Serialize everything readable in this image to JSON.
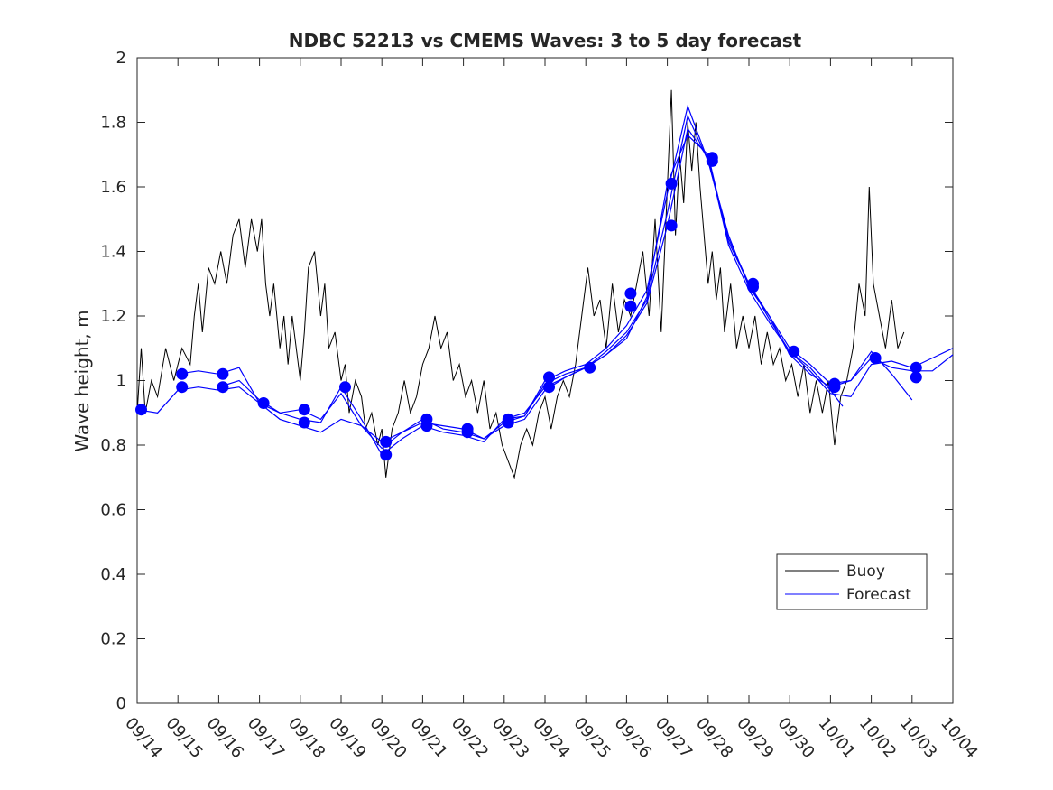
{
  "chart_data": {
    "type": "line",
    "title": "NDBC 52213 vs CMEMS Waves: 3 to 5 day forecast",
    "xlabel": "",
    "ylabel": "Wave height, m",
    "ylim": [
      0,
      2
    ],
    "xlim": [
      0,
      20
    ],
    "y_ticks": [
      0,
      0.2,
      0.4,
      0.6,
      0.8,
      1,
      1.2,
      1.4,
      1.6,
      1.8,
      2
    ],
    "y_tick_labels": [
      "0",
      "0.2",
      "0.4",
      "0.6",
      "0.8",
      "1",
      "1.2",
      "1.4",
      "1.6",
      "1.8",
      "2"
    ],
    "x_tick_labels": [
      "09/14",
      "09/15",
      "09/16",
      "09/17",
      "09/18",
      "09/19",
      "09/20",
      "09/21",
      "09/22",
      "09/23",
      "09/24",
      "09/25",
      "09/26",
      "09/27",
      "09/28",
      "09/29",
      "09/30",
      "10/01",
      "10/02",
      "10/03",
      "10/04"
    ],
    "legend": {
      "position": "bottom-right",
      "entries": [
        "Buoy",
        "Forecast"
      ]
    },
    "colors": {
      "buoy": "#000000",
      "forecast": "#0000ff",
      "axis": "#262626"
    },
    "buoy": {
      "name": "Buoy",
      "points": [
        [
          0,
          0.9
        ],
        [
          0.1,
          1.1
        ],
        [
          0.2,
          0.9
        ],
        [
          0.35,
          1
        ],
        [
          0.5,
          0.95
        ],
        [
          0.7,
          1.1
        ],
        [
          0.9,
          1
        ],
        [
          1.1,
          1.1
        ],
        [
          1.3,
          1.05
        ],
        [
          1.4,
          1.2
        ],
        [
          1.5,
          1.3
        ],
        [
          1.6,
          1.15
        ],
        [
          1.75,
          1.35
        ],
        [
          1.9,
          1.3
        ],
        [
          2.05,
          1.4
        ],
        [
          2.2,
          1.3
        ],
        [
          2.35,
          1.45
        ],
        [
          2.5,
          1.5
        ],
        [
          2.65,
          1.35
        ],
        [
          2.8,
          1.5
        ],
        [
          2.95,
          1.4
        ],
        [
          3.05,
          1.5
        ],
        [
          3.15,
          1.3
        ],
        [
          3.25,
          1.2
        ],
        [
          3.35,
          1.3
        ],
        [
          3.5,
          1.1
        ],
        [
          3.6,
          1.2
        ],
        [
          3.7,
          1.05
        ],
        [
          3.8,
          1.2
        ],
        [
          3.9,
          1.1
        ],
        [
          4.0,
          1.0
        ],
        [
          4.1,
          1.15
        ],
        [
          4.2,
          1.35
        ],
        [
          4.35,
          1.4
        ],
        [
          4.5,
          1.2
        ],
        [
          4.6,
          1.3
        ],
        [
          4.7,
          1.1
        ],
        [
          4.85,
          1.15
        ],
        [
          5.0,
          1.0
        ],
        [
          5.1,
          1.05
        ],
        [
          5.2,
          0.9
        ],
        [
          5.35,
          1.0
        ],
        [
          5.5,
          0.95
        ],
        [
          5.6,
          0.85
        ],
        [
          5.75,
          0.9
        ],
        [
          5.9,
          0.8
        ],
        [
          6.0,
          0.85
        ],
        [
          6.1,
          0.7
        ],
        [
          6.25,
          0.85
        ],
        [
          6.4,
          0.9
        ],
        [
          6.55,
          1.0
        ],
        [
          6.7,
          0.9
        ],
        [
          6.85,
          0.95
        ],
        [
          7.0,
          1.05
        ],
        [
          7.15,
          1.1
        ],
        [
          7.3,
          1.2
        ],
        [
          7.45,
          1.1
        ],
        [
          7.6,
          1.15
        ],
        [
          7.75,
          1.0
        ],
        [
          7.9,
          1.05
        ],
        [
          8.05,
          0.95
        ],
        [
          8.2,
          1.0
        ],
        [
          8.35,
          0.9
        ],
        [
          8.5,
          1.0
        ],
        [
          8.65,
          0.85
        ],
        [
          8.8,
          0.9
        ],
        [
          8.95,
          0.8
        ],
        [
          9.1,
          0.75
        ],
        [
          9.25,
          0.7
        ],
        [
          9.4,
          0.8
        ],
        [
          9.55,
          0.85
        ],
        [
          9.7,
          0.8
        ],
        [
          9.85,
          0.9
        ],
        [
          10.0,
          0.95
        ],
        [
          10.15,
          0.85
        ],
        [
          10.3,
          0.95
        ],
        [
          10.45,
          1.0
        ],
        [
          10.6,
          0.95
        ],
        [
          10.75,
          1.05
        ],
        [
          10.9,
          1.2
        ],
        [
          11.05,
          1.35
        ],
        [
          11.2,
          1.2
        ],
        [
          11.35,
          1.25
        ],
        [
          11.5,
          1.1
        ],
        [
          11.65,
          1.3
        ],
        [
          11.8,
          1.15
        ],
        [
          11.95,
          1.25
        ],
        [
          12.1,
          1.2
        ],
        [
          12.25,
          1.3
        ],
        [
          12.4,
          1.4
        ],
        [
          12.55,
          1.2
        ],
        [
          12.7,
          1.5
        ],
        [
          12.85,
          1.15
        ],
        [
          13.0,
          1.6
        ],
        [
          13.1,
          1.9
        ],
        [
          13.2,
          1.45
        ],
        [
          13.3,
          1.7
        ],
        [
          13.4,
          1.55
        ],
        [
          13.5,
          1.8
        ],
        [
          13.6,
          1.65
        ],
        [
          13.7,
          1.8
        ],
        [
          13.8,
          1.6
        ],
        [
          13.9,
          1.45
        ],
        [
          14.0,
          1.3
        ],
        [
          14.1,
          1.4
        ],
        [
          14.2,
          1.25
        ],
        [
          14.3,
          1.35
        ],
        [
          14.4,
          1.15
        ],
        [
          14.55,
          1.3
        ],
        [
          14.7,
          1.1
        ],
        [
          14.85,
          1.2
        ],
        [
          15.0,
          1.1
        ],
        [
          15.15,
          1.2
        ],
        [
          15.3,
          1.05
        ],
        [
          15.45,
          1.15
        ],
        [
          15.6,
          1.05
        ],
        [
          15.75,
          1.1
        ],
        [
          15.9,
          1.0
        ],
        [
          16.05,
          1.05
        ],
        [
          16.2,
          0.95
        ],
        [
          16.35,
          1.05
        ],
        [
          16.5,
          0.9
        ],
        [
          16.65,
          1.0
        ],
        [
          16.8,
          0.9
        ],
        [
          16.95,
          1.0
        ],
        [
          17.1,
          0.8
        ],
        [
          17.25,
          0.95
        ],
        [
          17.4,
          1.0
        ],
        [
          17.55,
          1.1
        ],
        [
          17.7,
          1.3
        ],
        [
          17.85,
          1.2
        ],
        [
          17.95,
          1.6
        ],
        [
          18.05,
          1.3
        ],
        [
          18.2,
          1.2
        ],
        [
          18.35,
          1.1
        ],
        [
          18.5,
          1.25
        ],
        [
          18.65,
          1.1
        ],
        [
          18.8,
          1.15
        ]
      ]
    },
    "forecast": {
      "name": "Forecast",
      "series": [
        [
          [
            0,
            0.91
          ],
          [
            0.5,
            0.9
          ],
          [
            1,
            0.97
          ],
          [
            1.5,
            0.98
          ],
          [
            2,
            0.97
          ],
          [
            2.5,
            0.98
          ],
          [
            3,
            0.93
          ],
          [
            3.5,
            0.88
          ],
          [
            4,
            0.86
          ],
          [
            4.5,
            0.84
          ],
          [
            5,
            0.88
          ],
          [
            5.5,
            0.86
          ],
          [
            6,
            0.81
          ],
          [
            6.5,
            0.84
          ],
          [
            7,
            0.87
          ],
          [
            7.5,
            0.86
          ],
          [
            8,
            0.85
          ],
          [
            8.5,
            0.82
          ],
          [
            9,
            0.86
          ],
          [
            9.5,
            0.88
          ],
          [
            10,
            0.97
          ],
          [
            10.5,
            1.01
          ],
          [
            11,
            1.04
          ],
          [
            11.5,
            1.08
          ],
          [
            12,
            1.14
          ],
          [
            12.5,
            1.24
          ],
          [
            13,
            1.48
          ],
          [
            13.5,
            1.78
          ],
          [
            14,
            1.69
          ],
          [
            14.5,
            1.42
          ],
          [
            15,
            1.28
          ],
          [
            15.5,
            1.18
          ],
          [
            16,
            1.09
          ],
          [
            16.5,
            1.04
          ],
          [
            17,
            0.97
          ],
          [
            17.3,
            0.92
          ]
        ],
        [
          [
            1,
            1.02
          ],
          [
            1.5,
            1.03
          ],
          [
            2,
            1.02
          ],
          [
            2.5,
            1.04
          ],
          [
            3,
            0.93
          ],
          [
            3.5,
            0.9
          ],
          [
            4,
            0.88
          ],
          [
            4.5,
            0.87
          ],
          [
            5,
            0.98
          ],
          [
            5.5,
            0.88
          ],
          [
            6,
            0.77
          ],
          [
            6.5,
            0.82
          ],
          [
            7,
            0.86
          ],
          [
            7.5,
            0.84
          ],
          [
            8,
            0.83
          ],
          [
            8.5,
            0.81
          ],
          [
            9,
            0.88
          ],
          [
            9.5,
            0.9
          ],
          [
            10,
            0.98
          ],
          [
            10.5,
            1.01
          ],
          [
            11,
            1.04
          ],
          [
            11.5,
            1.09
          ],
          [
            12,
            1.15
          ],
          [
            12.5,
            1.25
          ],
          [
            13,
            1.52
          ],
          [
            13.5,
            1.82
          ],
          [
            14,
            1.68
          ],
          [
            14.5,
            1.44
          ],
          [
            15,
            1.3
          ],
          [
            15.5,
            1.19
          ],
          [
            16,
            1.09
          ],
          [
            16.5,
            1.03
          ],
          [
            17,
            0.96
          ],
          [
            17.5,
            0.95
          ],
          [
            18,
            1.05
          ],
          [
            18.5,
            1.06
          ],
          [
            19,
            1.04
          ],
          [
            19.5,
            1.07
          ],
          [
            20,
            1.1
          ]
        ],
        [
          [
            2,
            0.98
          ],
          [
            2.5,
            1.0
          ],
          [
            3,
            0.94
          ],
          [
            3.5,
            0.9
          ],
          [
            4,
            0.91
          ],
          [
            4.5,
            0.88
          ],
          [
            5,
            0.96
          ],
          [
            5.5,
            0.86
          ],
          [
            6,
            0.79
          ],
          [
            6.5,
            0.84
          ],
          [
            7,
            0.88
          ],
          [
            7.5,
            0.85
          ],
          [
            8,
            0.84
          ],
          [
            8.5,
            0.82
          ],
          [
            9,
            0.87
          ],
          [
            9.5,
            0.89
          ],
          [
            10,
            1.0
          ],
          [
            10.5,
            1.03
          ],
          [
            11,
            1.05
          ],
          [
            11.5,
            1.1
          ],
          [
            12,
            1.17
          ],
          [
            12.5,
            1.28
          ],
          [
            13,
            1.58
          ],
          [
            13.5,
            1.85
          ],
          [
            14,
            1.68
          ],
          [
            14.5,
            1.45
          ],
          [
            15,
            1.29
          ],
          [
            15.5,
            1.2
          ],
          [
            16,
            1.1
          ],
          [
            16.5,
            1.05
          ],
          [
            17,
            0.99
          ],
          [
            17.5,
            1.0
          ],
          [
            18,
            1.07
          ],
          [
            18.5,
            1.04
          ],
          [
            19,
            1.03
          ],
          [
            19.5,
            1.03
          ],
          [
            20,
            1.08
          ]
        ],
        [
          [
            9,
            0.88
          ],
          [
            9.5,
            0.89
          ],
          [
            10,
            0.99
          ],
          [
            10.5,
            1.02
          ],
          [
            11,
            1.04
          ],
          [
            11.5,
            1.08
          ],
          [
            12,
            1.13
          ],
          [
            12.5,
            1.26
          ],
          [
            13,
            1.61
          ],
          [
            13.5,
            1.76
          ],
          [
            14,
            1.7
          ],
          [
            14.5,
            1.43
          ],
          [
            15,
            1.3
          ],
          [
            15.5,
            1.2
          ],
          [
            16,
            1.08
          ],
          [
            16.5,
            1.02
          ],
          [
            17,
            0.98
          ],
          [
            17.5,
            1.0
          ],
          [
            18,
            1.09
          ],
          [
            18.5,
            1.02
          ],
          [
            19,
            0.94
          ]
        ]
      ],
      "markers": [
        [
          0.1,
          0.91
        ],
        [
          1.1,
          1.02
        ],
        [
          1.1,
          0.98
        ],
        [
          2.1,
          1.02
        ],
        [
          2.1,
          0.98
        ],
        [
          3.1,
          0.93
        ],
        [
          4.1,
          0.91
        ],
        [
          4.1,
          0.87
        ],
        [
          5.1,
          0.98
        ],
        [
          6.1,
          0.81
        ],
        [
          6.1,
          0.77
        ],
        [
          7.1,
          0.88
        ],
        [
          7.1,
          0.86
        ],
        [
          8.1,
          0.85
        ],
        [
          8.1,
          0.84
        ],
        [
          9.1,
          0.88
        ],
        [
          9.1,
          0.87
        ],
        [
          10.1,
          1.01
        ],
        [
          10.1,
          0.98
        ],
        [
          11.1,
          1.04
        ],
        [
          12.1,
          1.27
        ],
        [
          12.1,
          1.23
        ],
        [
          13.1,
          1.61
        ],
        [
          13.1,
          1.48
        ],
        [
          14.1,
          1.69
        ],
        [
          14.1,
          1.68
        ],
        [
          15.1,
          1.3
        ],
        [
          15.1,
          1.29
        ],
        [
          16.1,
          1.09
        ],
        [
          17.1,
          0.99
        ],
        [
          17.1,
          0.98
        ],
        [
          18.1,
          1.07
        ],
        [
          19.1,
          1.04
        ],
        [
          19.1,
          1.01
        ]
      ]
    }
  }
}
